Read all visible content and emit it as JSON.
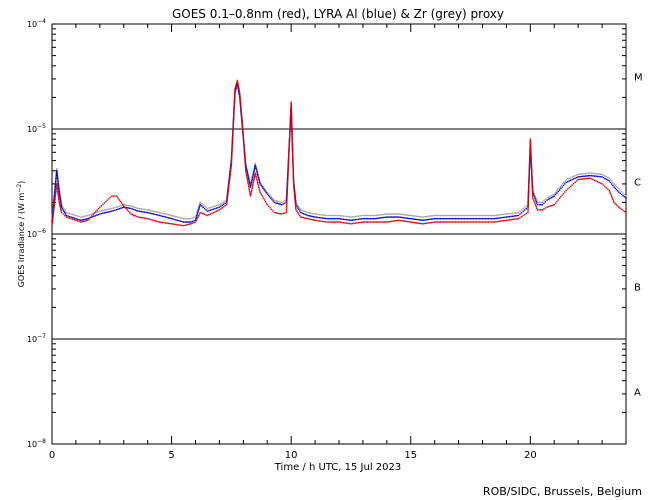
{
  "chart_data": {
    "type": "scatter",
    "title": "GOES 0.1–0.8nm (red), LYRA Al (blue) & Zr (grey) proxy",
    "xlabel": "Time / h UTC, 15 Jul 2023",
    "ylabel_main": "GOES Irradiance / (W m",
    "ylabel_exp": "−2",
    "ylabel_close": ")",
    "credit": "ROB/SIDC, Brussels, Belgium",
    "xlim": [
      0,
      24
    ],
    "ylim_log10": [
      -8,
      -4
    ],
    "y_scale": "log",
    "x_ticks": [
      {
        "value": 0,
        "label": "0"
      },
      {
        "value": 5,
        "label": "5"
      },
      {
        "value": 10,
        "label": "10"
      },
      {
        "value": 15,
        "label": "15"
      },
      {
        "value": 20,
        "label": "20"
      }
    ],
    "y_ticks": [
      {
        "exp": -8,
        "base": "10",
        "sup": "−8"
      },
      {
        "exp": -7,
        "base": "10",
        "sup": "−7"
      },
      {
        "exp": -6,
        "base": "10",
        "sup": "−6"
      },
      {
        "exp": -5,
        "base": "10",
        "sup": "−5"
      },
      {
        "exp": -4,
        "base": "10",
        "sup": "−4"
      }
    ],
    "flare_classes": [
      {
        "label": "M",
        "log_mid": -4.5
      },
      {
        "label": "C",
        "log_mid": -5.5
      },
      {
        "label": "B",
        "log_mid": -6.5
      },
      {
        "label": "A",
        "log_mid": -7.5
      }
    ],
    "threshold_lines_log10": [
      -7,
      -6,
      -5
    ],
    "series": [
      {
        "name": "GOES 0.1–0.8nm",
        "color": "#e00000",
        "x": [
          0.0,
          0.2,
          0.3,
          0.4,
          0.6,
          0.8,
          1.0,
          1.2,
          1.5,
          2.0,
          2.5,
          2.7,
          3.0,
          3.3,
          3.6,
          4.0,
          4.5,
          5.0,
          5.5,
          5.8,
          6.0,
          6.2,
          6.5,
          7.0,
          7.3,
          7.5,
          7.65,
          7.75,
          7.85,
          7.95,
          8.1,
          8.3,
          8.5,
          8.7,
          9.0,
          9.3,
          9.6,
          9.8,
          10.0,
          10.1,
          10.2,
          10.4,
          10.7,
          11.0,
          11.5,
          12.0,
          12.5,
          13.0,
          13.5,
          14.0,
          14.5,
          15.0,
          15.5,
          16.0,
          16.5,
          17.0,
          17.5,
          18.0,
          18.5,
          19.0,
          19.5,
          19.9,
          20.0,
          20.1,
          20.3,
          20.5,
          20.7,
          21.0,
          21.5,
          22.0,
          22.5,
          23.0,
          23.3,
          23.5,
          23.7,
          24.0
        ],
        "y": [
          1.2e-06,
          3e-06,
          2e-06,
          1.6e-06,
          1.45e-06,
          1.4e-06,
          1.35e-06,
          1.3e-06,
          1.35e-06,
          1.8e-06,
          2.3e-06,
          2.3e-06,
          1.85e-06,
          1.55e-06,
          1.45e-06,
          1.4e-06,
          1.3e-06,
          1.25e-06,
          1.2e-06,
          1.25e-06,
          1.3e-06,
          1.6e-06,
          1.5e-06,
          1.7e-06,
          1.9e-06,
          4.5e-06,
          2.4e-05,
          2.9e-05,
          2.2e-05,
          1.2e-05,
          4e-06,
          2.3e-06,
          3.8e-06,
          2.5e-06,
          1.9e-06,
          1.6e-06,
          1.55e-06,
          1.6e-06,
          1.8e-05,
          3e-06,
          1.7e-06,
          1.45e-06,
          1.4e-06,
          1.35e-06,
          1.3e-06,
          1.3e-06,
          1.25e-06,
          1.3e-06,
          1.3e-06,
          1.3e-06,
          1.35e-06,
          1.3e-06,
          1.25e-06,
          1.3e-06,
          1.3e-06,
          1.3e-06,
          1.3e-06,
          1.3e-06,
          1.3e-06,
          1.35e-06,
          1.4e-06,
          1.6e-06,
          8e-06,
          2.2e-06,
          1.7e-06,
          1.7e-06,
          1.8e-06,
          1.9e-06,
          2.6e-06,
          3.3e-06,
          3.4e-06,
          3e-06,
          2.6e-06,
          2e-06,
          1.8e-06,
          1.6e-06
        ]
      },
      {
        "name": "LYRA Al",
        "color": "#0000cc",
        "x": [
          0.0,
          0.2,
          0.3,
          0.4,
          0.6,
          0.8,
          1.0,
          1.2,
          1.5,
          2.0,
          2.5,
          2.7,
          3.0,
          3.3,
          3.6,
          4.0,
          4.5,
          5.0,
          5.5,
          5.8,
          6.0,
          6.2,
          6.5,
          7.0,
          7.3,
          7.5,
          7.65,
          7.75,
          7.85,
          7.95,
          8.1,
          8.3,
          8.5,
          8.7,
          9.0,
          9.3,
          9.6,
          9.8,
          10.0,
          10.1,
          10.2,
          10.4,
          10.7,
          11.0,
          11.5,
          12.0,
          12.5,
          13.0,
          13.5,
          14.0,
          14.5,
          15.0,
          15.5,
          16.0,
          16.5,
          17.0,
          17.5,
          18.0,
          18.5,
          19.0,
          19.5,
          19.9,
          20.0,
          20.1,
          20.3,
          20.5,
          20.7,
          21.0,
          21.5,
          22.0,
          22.5,
          23.0,
          23.3,
          23.5,
          23.7,
          24.0
        ],
        "y": [
          1.3e-06,
          4e-06,
          2.5e-06,
          1.8e-06,
          1.5e-06,
          1.45e-06,
          1.4e-06,
          1.35e-06,
          1.4e-06,
          1.55e-06,
          1.65e-06,
          1.7e-06,
          1.8e-06,
          1.75e-06,
          1.65e-06,
          1.6e-06,
          1.5e-06,
          1.4e-06,
          1.3e-06,
          1.3e-06,
          1.35e-06,
          1.9e-06,
          1.65e-06,
          1.8e-06,
          2e-06,
          5e-06,
          2.2e-05,
          2.7e-05,
          2e-05,
          1.1e-05,
          4.5e-06,
          2.8e-06,
          4.5e-06,
          3e-06,
          2.4e-06,
          2e-06,
          1.9e-06,
          2e-06,
          1.6e-05,
          3.2e-06,
          1.9e-06,
          1.6e-06,
          1.5e-06,
          1.45e-06,
          1.4e-06,
          1.4e-06,
          1.35e-06,
          1.4e-06,
          1.4e-06,
          1.45e-06,
          1.45e-06,
          1.4e-06,
          1.35e-06,
          1.4e-06,
          1.4e-06,
          1.4e-06,
          1.4e-06,
          1.4e-06,
          1.4e-06,
          1.45e-06,
          1.5e-06,
          1.8e-06,
          7e-06,
          2.5e-06,
          1.9e-06,
          1.9e-06,
          2.1e-06,
          2.3e-06,
          3.1e-06,
          3.5e-06,
          3.6e-06,
          3.5e-06,
          3.2e-06,
          2.8e-06,
          2.5e-06,
          2.2e-06
        ]
      },
      {
        "name": "LYRA Zr",
        "color": "#a0a0a0",
        "x": [
          0.0,
          0.2,
          0.3,
          0.4,
          0.6,
          0.8,
          1.0,
          1.2,
          1.5,
          2.0,
          2.5,
          2.7,
          3.0,
          3.3,
          3.6,
          4.0,
          4.5,
          5.0,
          5.5,
          5.8,
          6.0,
          6.2,
          6.5,
          7.0,
          7.3,
          7.5,
          7.65,
          7.75,
          7.85,
          7.95,
          8.1,
          8.3,
          8.5,
          8.7,
          9.0,
          9.3,
          9.6,
          9.8,
          10.0,
          10.1,
          10.2,
          10.4,
          10.7,
          11.0,
          11.5,
          12.0,
          12.5,
          13.0,
          13.5,
          14.0,
          14.5,
          15.0,
          15.5,
          16.0,
          16.5,
          17.0,
          17.5,
          18.0,
          18.5,
          19.0,
          19.5,
          19.9,
          20.0,
          20.1,
          20.3,
          20.5,
          20.7,
          21.0,
          21.5,
          22.0,
          22.5,
          23.0,
          23.3,
          23.5,
          23.7,
          24.0
        ],
        "y": [
          1.4e-06,
          4.2e-06,
          2.7e-06,
          1.9e-06,
          1.6e-06,
          1.55e-06,
          1.5e-06,
          1.45e-06,
          1.5e-06,
          1.65e-06,
          1.75e-06,
          1.8e-06,
          1.9e-06,
          1.85e-06,
          1.75e-06,
          1.7e-06,
          1.6e-06,
          1.5e-06,
          1.4e-06,
          1.4e-06,
          1.45e-06,
          2e-06,
          1.75e-06,
          1.9e-06,
          2.1e-06,
          5.2e-06,
          2.3e-05,
          2.8e-05,
          2.1e-05,
          1.15e-05,
          4.7e-06,
          2.9e-06,
          4.7e-06,
          3.1e-06,
          2.5e-06,
          2.1e-06,
          2e-06,
          2.1e-06,
          1.7e-05,
          3.3e-06,
          2e-06,
          1.7e-06,
          1.6e-06,
          1.55e-06,
          1.5e-06,
          1.5e-06,
          1.45e-06,
          1.5e-06,
          1.5e-06,
          1.55e-06,
          1.55e-06,
          1.5e-06,
          1.45e-06,
          1.5e-06,
          1.5e-06,
          1.5e-06,
          1.5e-06,
          1.5e-06,
          1.5e-06,
          1.55e-06,
          1.6e-06,
          1.9e-06,
          7.2e-06,
          2.6e-06,
          2e-06,
          2e-06,
          2.2e-06,
          2.4e-06,
          3.3e-06,
          3.7e-06,
          3.8e-06,
          3.7e-06,
          3.4e-06,
          3e-06,
          2.7e-06,
          2.3e-06
        ]
      }
    ]
  }
}
